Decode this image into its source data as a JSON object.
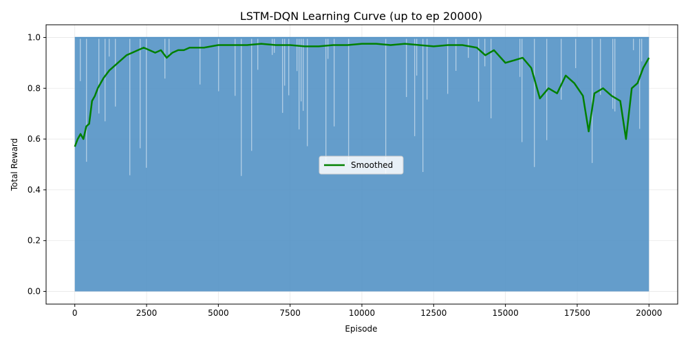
{
  "chart_data": {
    "type": "line",
    "title": "LSTM-DQN Learning Curve (up to ep 20000)",
    "xlabel": "Episode",
    "ylabel": "Total Reward",
    "xlim": [
      -1000,
      21000
    ],
    "ylim": [
      -0.05,
      1.05
    ],
    "xticks": [
      0,
      2500,
      5000,
      7500,
      10000,
      12500,
      15000,
      17500,
      20000
    ],
    "yticks": [
      0.0,
      0.2,
      0.4,
      0.6,
      0.8,
      1.0
    ],
    "grid": true,
    "legend_placement": "center",
    "series": [
      {
        "name": "",
        "color": "#4f8fc4",
        "description_values": "raw per-episode reward oscillating between ~0.0 and ~1.0",
        "x_range": [
          0,
          20000
        ],
        "lower_envelope": 0.0,
        "upper_envelope": 1.0
      },
      {
        "name": "Smoothed",
        "color": "#008000",
        "x": [
          0,
          100,
          200,
          300,
          400,
          500,
          600,
          700,
          800,
          900,
          1000,
          1200,
          1400,
          1600,
          1800,
          2000,
          2200,
          2400,
          2600,
          2800,
          3000,
          3200,
          3400,
          3600,
          3800,
          4000,
          4500,
          5000,
          5500,
          6000,
          6500,
          7000,
          7500,
          8000,
          8500,
          9000,
          9500,
          10000,
          10500,
          11000,
          11500,
          12000,
          12500,
          13000,
          13500,
          14000,
          14300,
          14600,
          15000,
          15300,
          15600,
          15900,
          16200,
          16500,
          16800,
          17100,
          17400,
          17700,
          17900,
          18100,
          18400,
          18700,
          19000,
          19200,
          19400,
          19600,
          19800,
          20000
        ],
        "values": [
          0.57,
          0.6,
          0.62,
          0.6,
          0.65,
          0.66,
          0.75,
          0.77,
          0.8,
          0.82,
          0.84,
          0.87,
          0.89,
          0.91,
          0.93,
          0.94,
          0.95,
          0.96,
          0.95,
          0.94,
          0.95,
          0.92,
          0.94,
          0.95,
          0.95,
          0.96,
          0.96,
          0.97,
          0.97,
          0.97,
          0.975,
          0.97,
          0.97,
          0.965,
          0.965,
          0.97,
          0.97,
          0.975,
          0.975,
          0.97,
          0.975,
          0.97,
          0.965,
          0.97,
          0.97,
          0.96,
          0.93,
          0.95,
          0.9,
          0.91,
          0.92,
          0.88,
          0.76,
          0.8,
          0.78,
          0.85,
          0.82,
          0.77,
          0.63,
          0.78,
          0.8,
          0.77,
          0.75,
          0.6,
          0.8,
          0.82,
          0.88,
          0.92
        ]
      }
    ]
  }
}
